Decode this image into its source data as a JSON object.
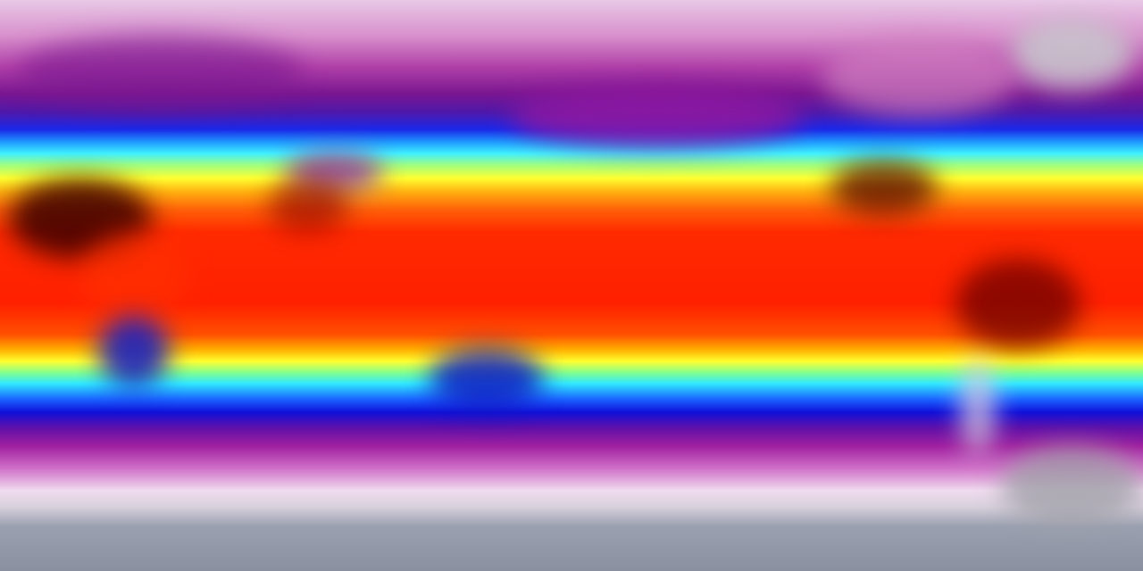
{
  "map": {
    "colors": {
      "polar": "#8a90a0",
      "cold": "#7a1690",
      "cool": "#1a28e8",
      "mild": "#40f0ff",
      "warm": "#ffff30",
      "hot": "#ff2000",
      "hottest": "#3a0000"
    }
  }
}
